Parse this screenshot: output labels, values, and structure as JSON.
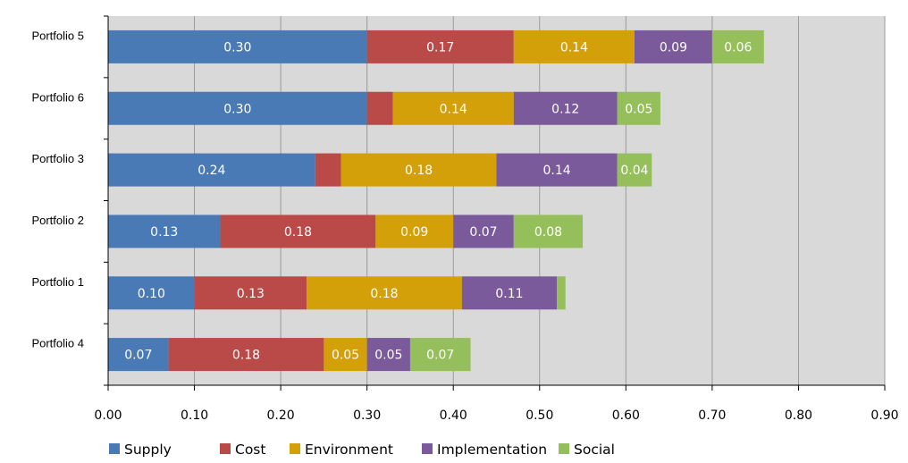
{
  "chart_data": {
    "type": "bar",
    "orientation": "horizontal",
    "stacked": true,
    "title": "",
    "xlabel": "",
    "ylabel": "",
    "xlim": [
      0,
      0.9
    ],
    "x_ticks": [
      "0.00",
      "0.10",
      "0.20",
      "0.30",
      "0.40",
      "0.50",
      "0.60",
      "0.70",
      "0.80",
      "0.90"
    ],
    "grid": true,
    "legend_position": "bottom",
    "categories": [
      "Portfolio 5",
      "Portfolio 6",
      "Portfolio 3",
      "Portfolio 2",
      "Portfolio 1",
      "Portfolio 4"
    ],
    "series": [
      {
        "name": "Supply",
        "color": "#4a7ab5",
        "values": [
          0.3,
          0.3,
          0.24,
          0.13,
          0.1,
          0.07
        ],
        "labels": [
          "0.30",
          "0.30",
          "0.24",
          "0.13",
          "0.10",
          "0.07"
        ]
      },
      {
        "name": "Cost",
        "color": "#b94a48",
        "values": [
          0.17,
          0.03,
          0.03,
          0.18,
          0.13,
          0.18
        ],
        "labels": [
          "0.17",
          "",
          "",
          "0.18",
          "0.13",
          "0.18"
        ]
      },
      {
        "name": "Environment",
        "color": "#d4a00a",
        "values": [
          0.14,
          0.14,
          0.18,
          0.09,
          0.18,
          0.05
        ],
        "labels": [
          "0.14",
          "0.14",
          "0.18",
          "0.09",
          "0.18",
          "0.05"
        ]
      },
      {
        "name": "Implementation",
        "color": "#7a5a9a",
        "values": [
          0.09,
          0.12,
          0.14,
          0.07,
          0.11,
          0.05
        ],
        "labels": [
          "0.09",
          "0.12",
          "0.14",
          "0.07",
          "0.11",
          "0.05"
        ]
      },
      {
        "name": "Social",
        "color": "#94bf5a",
        "values": [
          0.06,
          0.05,
          0.04,
          0.08,
          0.01,
          0.07
        ],
        "labels": [
          "0.06",
          "0.05",
          "0.04",
          "0.08",
          "",
          "0.07"
        ]
      }
    ]
  }
}
